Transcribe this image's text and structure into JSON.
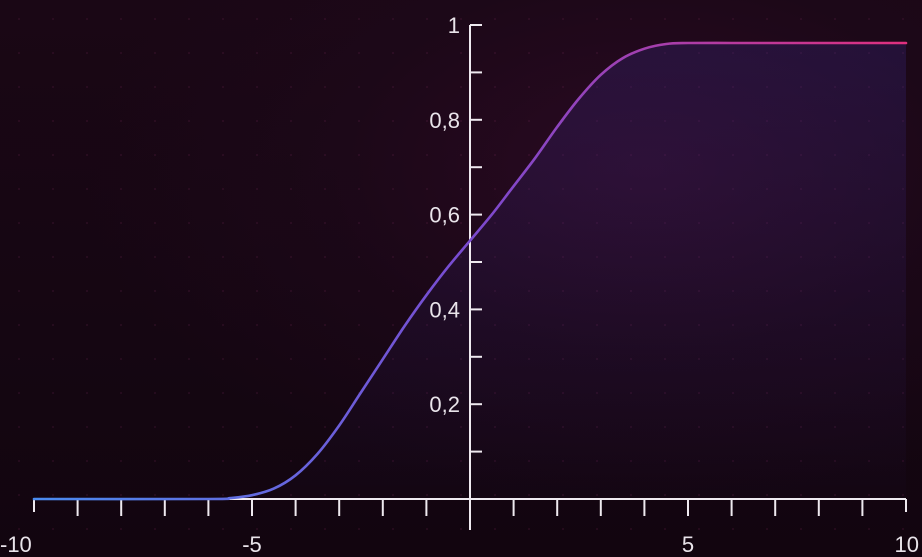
{
  "chart_data": {
    "type": "line",
    "title": "",
    "xlabel": "",
    "ylabel": "",
    "xlim": [
      -10,
      10
    ],
    "ylim": [
      0,
      1
    ],
    "x_ticks": [
      -10,
      -5,
      0,
      5,
      10
    ],
    "x_tick_labels": [
      "-10",
      "-5",
      "",
      "5",
      "10"
    ],
    "x_minor_step": 1,
    "y_ticks": [
      0.2,
      0.4,
      0.6,
      0.8,
      1
    ],
    "y_tick_labels": [
      "0,2",
      "0,4",
      "0,6",
      "0,8",
      "1"
    ],
    "y_minor_step": 0.1,
    "grid": false,
    "legend": "none",
    "series": [
      {
        "x": [
          -10,
          -6,
          -5.5,
          -5,
          -4.5,
          -4,
          -3.5,
          -3,
          -2.5,
          -2,
          -1.5,
          -1,
          -0.5,
          0,
          0.5,
          1,
          1.5,
          2,
          2.5,
          3,
          3.5,
          4,
          4.5,
          5,
          6,
          7,
          8,
          9,
          10
        ],
        "y": [
          0,
          0,
          0.002,
          0.008,
          0.022,
          0.05,
          0.095,
          0.155,
          0.225,
          0.295,
          0.365,
          0.43,
          0.49,
          0.545,
          0.6,
          0.66,
          0.72,
          0.785,
          0.845,
          0.895,
          0.93,
          0.95,
          0.96,
          0.962,
          0.962,
          0.962,
          0.962,
          0.962,
          0.962
        ]
      }
    ],
    "colors": {
      "line_start": "#4a8cf0",
      "line_mid": "#7a4ad0",
      "line_end": "#e0307e",
      "axis": "#efeaf0",
      "fill": "#3a2a8a"
    }
  }
}
